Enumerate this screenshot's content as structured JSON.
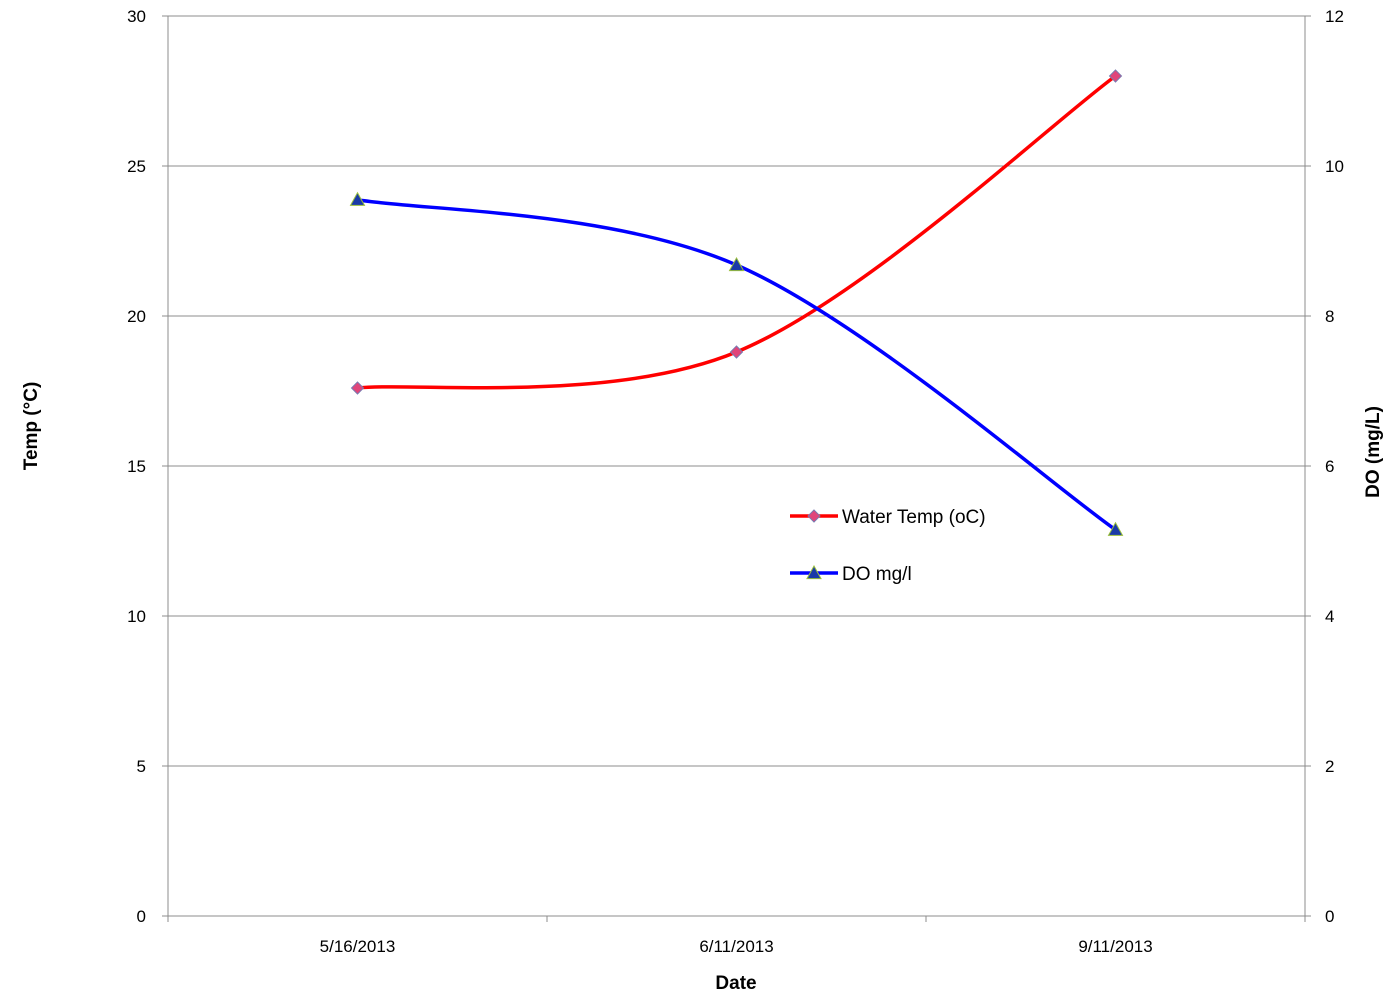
{
  "chart_data": {
    "type": "line",
    "title": "",
    "xlabel": "Date",
    "ylabel": "Temp (°C)",
    "y2label": "DO (mg/L)",
    "categories": [
      "5/16/2013",
      "6/11/2013",
      "9/11/2013"
    ],
    "ylim": [
      0,
      30
    ],
    "y2lim": [
      0,
      12
    ],
    "yticks": [
      "0",
      "5",
      "10",
      "15",
      "20",
      "25",
      "30"
    ],
    "y2ticks": [
      "0",
      "2",
      "4",
      "6",
      "8",
      "10",
      "12"
    ],
    "grid": true,
    "legend_position": "center-right inside plot",
    "series": [
      {
        "name": "Water Temp (oC)",
        "axis": "left",
        "values": [
          17.6,
          18.8,
          28.0
        ],
        "color": "#ff0000",
        "marker": "diamond",
        "marker_color": "#e0457a"
      },
      {
        "name": "DO mg/l",
        "axis": "right",
        "values": [
          9.55,
          8.68,
          5.15
        ],
        "color": "#0000ff",
        "marker": "triangle",
        "marker_color": "#1a3aa8"
      }
    ]
  }
}
